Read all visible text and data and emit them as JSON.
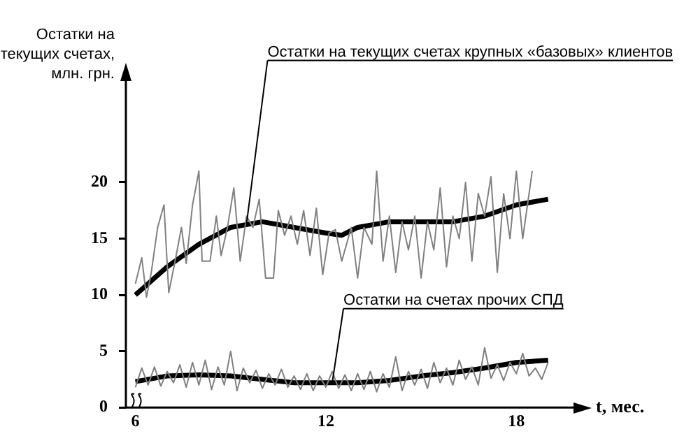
{
  "chart_data": {
    "type": "line",
    "ylabel": "Остатки на\nтекущих счетах,\nмлн. грн.",
    "xlabel": "t, мес.",
    "xlim": [
      5.7,
      19.8
    ],
    "xticks": [
      6,
      12,
      18
    ],
    "ylim": [
      0,
      29
    ],
    "yticks": [
      0,
      5,
      10,
      15,
      20
    ],
    "grid": false,
    "legend": false,
    "marker": "none",
    "series": [
      {
        "color": "#808080",
        "x": [
          6.0,
          6.2,
          6.35,
          6.5,
          6.7,
          6.9,
          7.05,
          7.25,
          7.45,
          7.6,
          7.8,
          8.0,
          8.1,
          8.35,
          8.55,
          8.7,
          8.9,
          9.1,
          9.3,
          9.5,
          9.7,
          9.9,
          10.1,
          10.35,
          10.5,
          10.7,
          10.9,
          11.1,
          11.3,
          11.5,
          11.7,
          11.9,
          12.1,
          12.3,
          12.5,
          12.8,
          13.0,
          13.2,
          13.45,
          13.6,
          13.8,
          14.0,
          14.2,
          14.4,
          14.6,
          14.8,
          15.0,
          15.2,
          15.4,
          15.6,
          15.8,
          16.0,
          16.2,
          16.4,
          16.6,
          16.8,
          17.0,
          17.2,
          17.4,
          17.6,
          17.8,
          18.0,
          18.2,
          18.5
        ],
        "values": [
          11,
          13.3,
          9.8,
          12,
          16,
          18,
          10.2,
          13,
          16,
          12.8,
          18,
          21,
          13,
          13,
          17,
          13.5,
          16,
          19.5,
          13,
          17,
          16,
          18.5,
          11.5,
          11.5,
          17.5,
          15.3,
          17,
          14.5,
          17.5,
          13.5,
          17.7,
          11.8,
          15.5,
          15.8,
          13,
          16,
          11.5,
          16,
          14.5,
          21,
          13,
          17,
          12,
          16.5,
          14,
          17,
          11.5,
          16.5,
          14,
          19.5,
          12.5,
          17,
          15,
          20,
          13,
          19,
          17,
          20.5,
          12,
          19,
          15,
          21,
          15,
          21
        ]
      },
      {
        "color": "#000000",
        "x": [
          6,
          7,
          8,
          9,
          10,
          11,
          12,
          12.5,
          13,
          14,
          15,
          16,
          17,
          18,
          19
        ],
        "values": [
          10,
          12.5,
          14.5,
          16,
          16.5,
          16,
          15.5,
          15.3,
          16,
          16.5,
          16.5,
          16.5,
          17,
          18,
          18.5
        ]
      },
      {
        "color": "#808080",
        "x": [
          6.0,
          6.2,
          6.4,
          6.6,
          6.8,
          7.0,
          7.2,
          7.4,
          7.6,
          7.8,
          8.0,
          8.2,
          8.4,
          8.6,
          8.8,
          9.0,
          9.2,
          9.4,
          9.6,
          9.8,
          10.0,
          10.2,
          10.4,
          10.6,
          10.8,
          11.0,
          11.2,
          11.4,
          11.6,
          11.8,
          12.0,
          12.2,
          12.4,
          12.6,
          12.8,
          13.0,
          13.2,
          13.4,
          13.6,
          13.8,
          14.0,
          14.2,
          14.4,
          14.6,
          14.8,
          15.0,
          15.2,
          15.4,
          15.6,
          15.8,
          16.0,
          16.2,
          16.4,
          16.6,
          16.8,
          17.0,
          17.2,
          17.4,
          17.6,
          17.8,
          18.0,
          18.2,
          18.4,
          18.6,
          18.8,
          19.0
        ],
        "values": [
          1.8,
          3.5,
          2.0,
          3.6,
          1.9,
          3.2,
          2.2,
          3.8,
          1.8,
          4.0,
          2.0,
          4.2,
          1.6,
          3.6,
          2.0,
          5.0,
          1.5,
          3.5,
          2.2,
          3.3,
          1.7,
          3.0,
          2.0,
          3.4,
          1.8,
          2.8,
          1.6,
          3.0,
          1.5,
          2.8,
          1.8,
          3.2,
          1.7,
          2.9,
          1.5,
          3.0,
          1.6,
          3.2,
          1.4,
          3.0,
          1.8,
          4.5,
          1.5,
          3.2,
          2.0,
          3.4,
          1.7,
          4.0,
          2.2,
          3.5,
          2.0,
          4.2,
          2.5,
          3.6,
          2.0,
          5.3,
          2.6,
          3.8,
          2.4,
          4.0,
          3.0,
          4.8,
          2.8,
          3.5,
          2.5,
          4.0
        ]
      },
      {
        "color": "#000000",
        "x": [
          6,
          7,
          8,
          9,
          10,
          11,
          12,
          13,
          14,
          15,
          16,
          17,
          18,
          19
        ],
        "values": [
          2.3,
          2.8,
          2.9,
          2.8,
          2.5,
          2.2,
          2.2,
          2.2,
          2.4,
          2.8,
          3.1,
          3.5,
          4.0,
          4.2
        ]
      }
    ],
    "annotations": [
      {
        "text": "Остатки на текущих счетах крупных «базовых» клиентов",
        "x": 9.5,
        "y": 16.3
      },
      {
        "text": "Остатки на счетах прочих СПД",
        "x": 12.2,
        "y": 2.2
      }
    ]
  }
}
